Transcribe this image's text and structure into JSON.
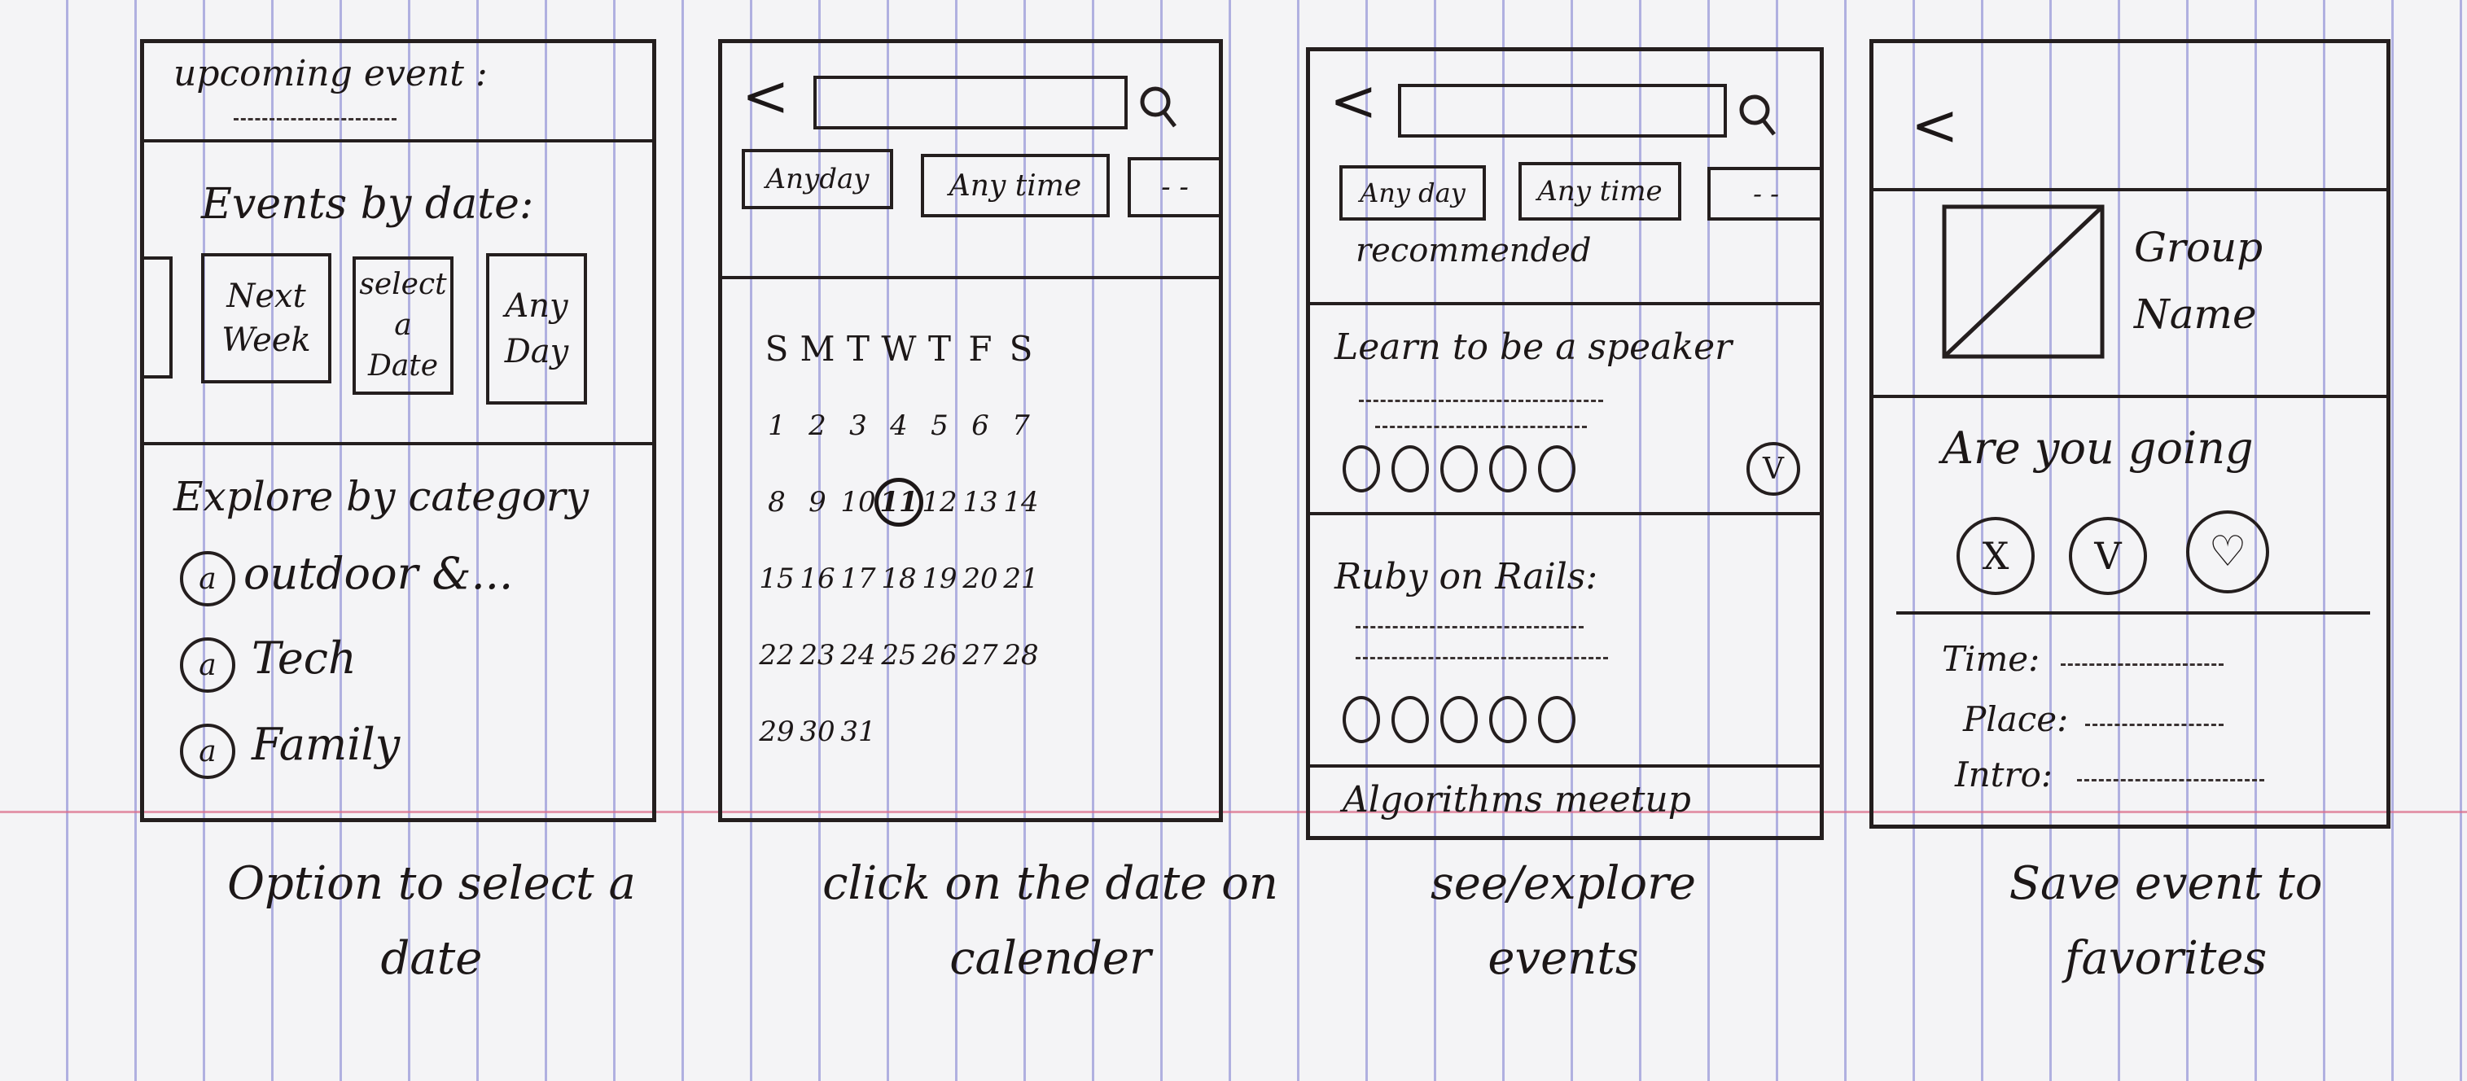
{
  "screen1": {
    "upcoming_label": "upcoming event :",
    "events_by_date": "Events by date:",
    "date_options": [
      "Next Week",
      "select a Date",
      "Any Day"
    ],
    "explore_label": "Explore by category",
    "categories": [
      "outdoor &...",
      "Tech",
      "Family"
    ],
    "category_icon_char": "a"
  },
  "screen2": {
    "back_glyph": "<",
    "filters": [
      "Anyday",
      "Any time",
      "- -"
    ],
    "weekdays": [
      "S",
      "M",
      "T",
      "W",
      "T",
      "F",
      "S"
    ],
    "days": [
      "1",
      "2",
      "3",
      "4",
      "5",
      "6",
      "7",
      "8",
      "9",
      "10",
      "11",
      "12",
      "13",
      "14",
      "15",
      "16",
      "17",
      "18",
      "19",
      "20",
      "21",
      "22",
      "23",
      "24",
      "25",
      "26",
      "27",
      "28",
      "29",
      "30",
      "31"
    ],
    "selected_day": "11"
  },
  "screen3": {
    "back_glyph": "<",
    "filters": [
      "Any day",
      "Any time",
      "- -"
    ],
    "recommended_label": "recommended",
    "events": [
      {
        "title": "Learn to be a speaker"
      },
      {
        "title": "Ruby on Rails:"
      },
      {
        "title": "Algorithms meetup"
      }
    ],
    "check_glyph": "V"
  },
  "screen4": {
    "back_glyph": "<",
    "group_name": "Group Name",
    "going_question": "Are you going",
    "rsvp_options": [
      "X",
      "V",
      "♡"
    ],
    "details": [
      {
        "label": "Time:"
      },
      {
        "label": "Place:"
      },
      {
        "label": "Intro:"
      }
    ]
  },
  "captions": [
    "Option to select a date",
    "click on the date on calender",
    "see/explore events",
    "Save event to favorites"
  ]
}
